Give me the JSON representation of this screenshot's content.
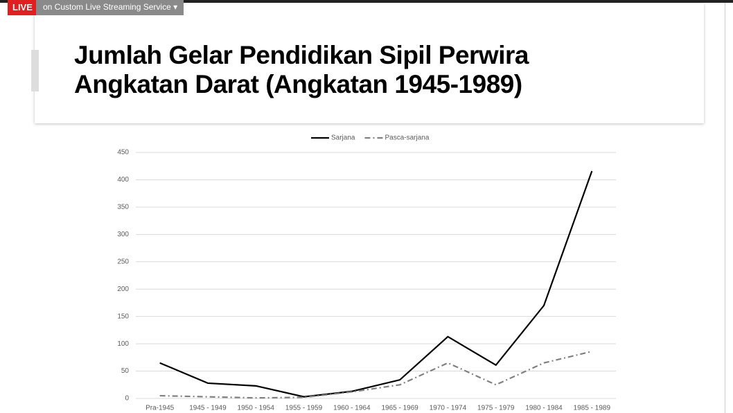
{
  "overlay": {
    "live": "LIVE",
    "service": "on Custom Live Streaming Service"
  },
  "chart_data": {
    "type": "line",
    "title": [
      "Jumlah Gelar Pendidikan Sipil Perwira",
      "Angkatan Darat (Angkatan 1945-1989)"
    ],
    "categories": [
      "Pra-1945",
      "1945 - 1949",
      "1950 - 1954",
      "1955 - 1959",
      "1960 - 1964",
      "1965 - 1969",
      "1970 - 1974",
      "1975 - 1979",
      "1980 - 1984",
      "1985 - 1989"
    ],
    "series": [
      {
        "name": "Sarjana",
        "color": "#000000",
        "dash": "solid",
        "values": [
          65,
          28,
          23,
          3,
          13,
          34,
          113,
          61,
          170,
          416
        ]
      },
      {
        "name": "Pasca-sarjana",
        "color": "#808080",
        "dash": "dash-dot",
        "values": [
          5,
          3,
          1,
          2,
          12,
          25,
          65,
          25,
          65,
          86
        ]
      }
    ],
    "ylim": [
      0,
      450
    ],
    "yticks": [
      0,
      50,
      100,
      150,
      200,
      250,
      300,
      350,
      400,
      450
    ],
    "grid": true,
    "legend": "top"
  }
}
